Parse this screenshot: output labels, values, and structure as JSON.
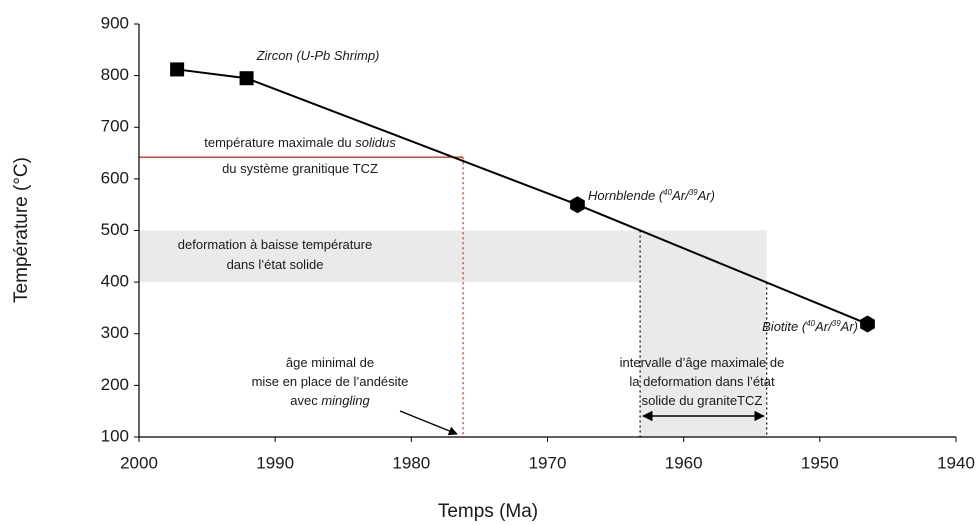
{
  "chart_data": {
    "type": "line",
    "xlabel": "Temps (Ma)",
    "ylabel": "Température (°C)",
    "xlim": [
      2000,
      1940
    ],
    "xticks": [
      2000,
      1990,
      1980,
      1970,
      1960,
      1950,
      1940
    ],
    "ylim": [
      100,
      900
    ],
    "yticks": [
      100,
      200,
      300,
      400,
      500,
      600,
      700,
      800,
      900
    ],
    "series": [
      {
        "color": "#000000",
        "x": [
          1997.2,
          1992.1,
          1967.8,
          1946.5
        ],
        "values": [
          812,
          795,
          550,
          319
        ],
        "markers": [
          "square",
          "square",
          "hexagon",
          "hexagon"
        ]
      }
    ],
    "reference": {
      "solidus_temperature": 642,
      "minimal_age": 1976.2,
      "band": [
        400,
        500
      ],
      "interval": [
        1963.2,
        1953.9
      ],
      "solidus_color": "#c0392b",
      "shade_color": "#d0d0d0"
    },
    "annotations": [
      {
        "lines": [
          [
            {
              "text": "Zircon (U-Pb Shrimp)",
              "italic": true
            }
          ]
        ]
      },
      {
        "lines": [
          [
            {
              "text": "température maximale du "
            },
            {
              "text": "solidus",
              "italic": true
            }
          ],
          [
            {
              "text": "du système granitique TCZ"
            }
          ]
        ]
      },
      {
        "lines": [
          [
            {
              "text": "deformation à baisse température"
            }
          ],
          [
            {
              "text": "dans l’état solide"
            }
          ]
        ]
      },
      {
        "lines": [
          [
            {
              "text": "Hornblende (",
              "italic": true
            },
            {
              "text": "40",
              "italic": true,
              "sup": true
            },
            {
              "text": "Ar/",
              "italic": true
            },
            {
              "text": "39",
              "italic": true,
              "sup": true
            },
            {
              "text": "Ar)",
              "italic": true
            }
          ]
        ]
      },
      {
        "lines": [
          [
            {
              "text": "Biotite (",
              "italic": true
            },
            {
              "text": "40",
              "italic": true,
              "sup": true
            },
            {
              "text": "Ar/",
              "italic": true
            },
            {
              "text": "39",
              "italic": true,
              "sup": true
            },
            {
              "text": "Ar)",
              "italic": true
            }
          ]
        ]
      },
      {
        "lines": [
          [
            {
              "text": "âge minimal de"
            }
          ],
          [
            {
              "text": "mise en place de l’andésite"
            }
          ],
          [
            {
              "text": "avec "
            },
            {
              "text": "mingling",
              "italic": true
            }
          ]
        ]
      },
      {
        "lines": [
          [
            {
              "text": "intervalle d’âge maximale de"
            }
          ],
          [
            {
              "text": "la deformation dans l’état"
            }
          ],
          [
            {
              "text": "solide du graniteTCZ"
            }
          ]
        ]
      }
    ]
  }
}
